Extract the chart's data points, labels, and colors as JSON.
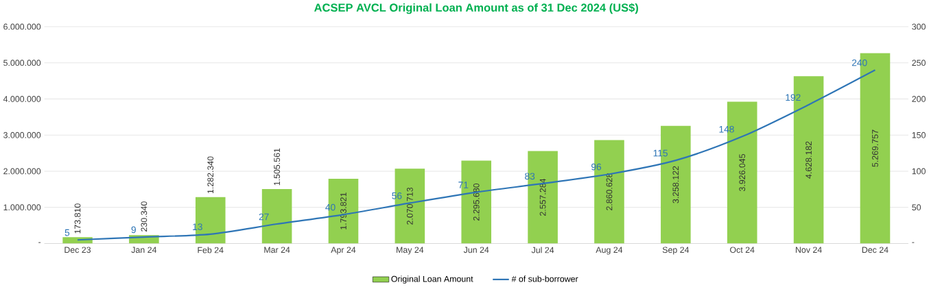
{
  "chart_data": {
    "type": "bar",
    "title": "ACSEP AVCL Original Loan Amount as of 31 Dec  2024 (US$)",
    "categories": [
      "Dec 23",
      "Jan 24",
      "Feb 24",
      "Mar 24",
      "Apr 24",
      "May 24",
      "Jun 24",
      "Jul 24",
      "Aug 24",
      "Sep 24",
      "Oct 24",
      "Nov 24",
      "Dec 24"
    ],
    "series": [
      {
        "name": "Original Loan Amount",
        "color": "#92d050",
        "values": [
          173810,
          230340,
          1282340,
          1505561,
          1793821,
          2070713,
          2295680,
          2557284,
          2860628,
          3258122,
          3926045,
          4628182,
          5269757
        ],
        "value_labels": [
          "173.810",
          "230.340",
          "1.282.340",
          "1.505.561",
          "1.793.821",
          "2.070.713",
          "2.295.680",
          "2.557.284",
          "2.860.628",
          "3.258.122",
          "3.926.045",
          "4.628.182",
          "5.269.757"
        ]
      },
      {
        "name": "# of sub-borrower",
        "type": "line",
        "axis": "y2",
        "color": "#2e75b6",
        "values": [
          5,
          9,
          13,
          27,
          40,
          56,
          71,
          83,
          96,
          115,
          148,
          192,
          240
        ],
        "value_labels": [
          "5",
          "9",
          "13",
          "27",
          "40",
          "56",
          "71",
          "83",
          "96",
          "115",
          "148",
          "192",
          "240"
        ]
      }
    ],
    "ylim": [
      0,
      6000000
    ],
    "yticks": [
      {
        "value": 0,
        "label": "-"
      },
      {
        "value": 1000000,
        "label": "1.000.000"
      },
      {
        "value": 2000000,
        "label": "2.000.000"
      },
      {
        "value": 3000000,
        "label": "3.000.000"
      },
      {
        "value": 4000000,
        "label": "4.000.000"
      },
      {
        "value": 5000000,
        "label": "5.000.000"
      },
      {
        "value": 6000000,
        "label": "6.000.000"
      }
    ],
    "y2lim": [
      0,
      300
    ],
    "y2ticks": [
      {
        "value": 0,
        "label": "-"
      },
      50,
      100,
      150,
      200,
      250,
      300
    ],
    "grid": "y",
    "legend": "bottom"
  }
}
